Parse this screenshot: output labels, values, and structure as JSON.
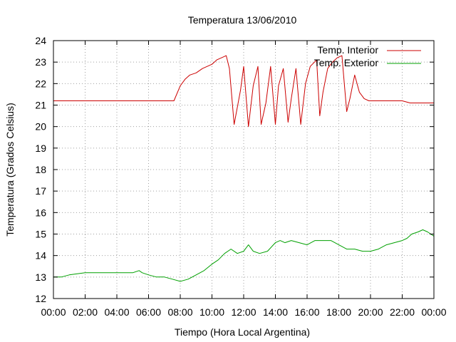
{
  "chart_data": {
    "type": "line",
    "title": "Temperatura 13/06/2010",
    "xlabel": "Tiempo (Hora Local Argentina)",
    "ylabel": "Temperatura (Grados Celsius)",
    "xlim": [
      0,
      24
    ],
    "ylim": [
      12,
      24
    ],
    "grid": true,
    "legend_position": "top-right",
    "x_tick_labels": [
      "00:00",
      "02:00",
      "04:00",
      "06:00",
      "08:00",
      "10:00",
      "12:00",
      "14:00",
      "16:00",
      "18:00",
      "20:00",
      "22:00",
      "00:00"
    ],
    "y_tick_labels": [
      "12",
      "13",
      "14",
      "15",
      "16",
      "17",
      "18",
      "19",
      "20",
      "21",
      "22",
      "23",
      "24"
    ],
    "series": [
      {
        "name": "Temp. Interior",
        "color": "#cc0000",
        "x": [
          0,
          7.6,
          8.0,
          8.3,
          8.6,
          9.0,
          9.4,
          9.7,
          10.0,
          10.3,
          10.6,
          10.9,
          11.1,
          11.4,
          11.8,
          12.0,
          12.3,
          12.6,
          12.9,
          13.1,
          13.4,
          13.7,
          14.0,
          14.2,
          14.5,
          14.8,
          15.0,
          15.3,
          15.6,
          15.9,
          16.2,
          16.6,
          16.8,
          17.0,
          17.3,
          17.6,
          17.9,
          18.2,
          18.5,
          18.7,
          19.0,
          19.3,
          19.6,
          19.9,
          20.2,
          20.5,
          21.0,
          21.5,
          22.0,
          22.5,
          23.0,
          23.5,
          24.0
        ],
        "y": [
          21.2,
          21.2,
          21.9,
          22.2,
          22.4,
          22.5,
          22.7,
          22.8,
          22.9,
          23.1,
          23.2,
          23.3,
          22.7,
          20.1,
          21.7,
          22.8,
          20.0,
          21.9,
          22.8,
          20.1,
          21.1,
          22.8,
          20.1,
          21.9,
          22.7,
          20.2,
          21.3,
          22.7,
          20.1,
          22.0,
          22.8,
          23.1,
          20.5,
          21.6,
          22.7,
          23.0,
          23.2,
          23.3,
          20.7,
          21.3,
          22.4,
          21.6,
          21.3,
          21.2,
          21.2,
          21.2,
          21.2,
          21.2,
          21.2,
          21.1,
          21.1,
          21.1,
          21.1
        ]
      },
      {
        "name": "Temp. Exterior",
        "color": "#00a000",
        "x": [
          0,
          0.5,
          1.0,
          2.0,
          3.0,
          4.0,
          5.0,
          5.4,
          5.6,
          6.0,
          6.5,
          7.0,
          7.5,
          8.0,
          8.5,
          9.0,
          9.5,
          10.0,
          10.4,
          10.8,
          11.2,
          11.6,
          12.0,
          12.3,
          12.6,
          13.0,
          13.5,
          14.0,
          14.3,
          14.6,
          15.0,
          15.5,
          16.0,
          16.5,
          17.0,
          17.5,
          18.0,
          18.5,
          19.0,
          19.5,
          20.0,
          20.5,
          21.0,
          21.5,
          22.0,
          22.3,
          22.6,
          23.0,
          23.3,
          23.6,
          23.8,
          24.0
        ],
        "y": [
          13.0,
          13.0,
          13.1,
          13.2,
          13.2,
          13.2,
          13.2,
          13.3,
          13.2,
          13.1,
          13.0,
          13.0,
          12.9,
          12.8,
          12.9,
          13.1,
          13.3,
          13.6,
          13.8,
          14.1,
          14.3,
          14.1,
          14.2,
          14.5,
          14.2,
          14.1,
          14.2,
          14.6,
          14.7,
          14.6,
          14.7,
          14.6,
          14.5,
          14.7,
          14.7,
          14.7,
          14.5,
          14.3,
          14.3,
          14.2,
          14.2,
          14.3,
          14.5,
          14.6,
          14.7,
          14.8,
          15.0,
          15.1,
          15.2,
          15.1,
          15.0,
          14.9
        ]
      }
    ]
  }
}
